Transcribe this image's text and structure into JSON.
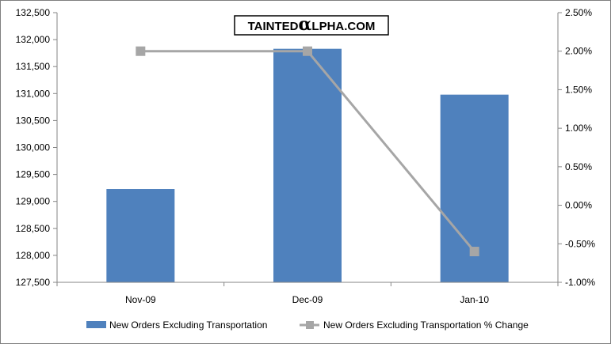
{
  "watermark": {
    "prefix": "TAINTED",
    "alpha": "α",
    "suffix": "LPHA.COM"
  },
  "colors": {
    "bar": "#4f81bd",
    "line": "#a6a6a6",
    "axis": "#868686",
    "frame": "#7f7f7f"
  },
  "chart_data": {
    "type": "bar",
    "categories": [
      "Nov-09",
      "Dec-09",
      "Jan-10"
    ],
    "series": [
      {
        "name": "New Orders Excluding Transportation",
        "type": "bar",
        "axis": "left",
        "values": [
          129230,
          131830,
          130980
        ]
      },
      {
        "name": "New Orders Excluding Transportation  % Change",
        "type": "line",
        "axis": "right",
        "values": [
          0.02,
          0.02,
          -0.006
        ]
      }
    ],
    "y_left": {
      "min": 127500,
      "max": 132500,
      "ticks": [
        127500,
        128000,
        128500,
        129000,
        129500,
        130000,
        130500,
        131000,
        131500,
        132000,
        132500
      ],
      "tick_labels": [
        "127,500",
        "128,000",
        "128,500",
        "129,000",
        "129,500",
        "130,000",
        "130,500",
        "131,000",
        "131,500",
        "132,000",
        "132,500"
      ]
    },
    "y_right": {
      "min": -0.01,
      "max": 0.025,
      "ticks": [
        -0.01,
        -0.005,
        0,
        0.005,
        0.01,
        0.015,
        0.02,
        0.025
      ],
      "tick_labels": [
        "-1.00%",
        "-0.50%",
        "0.00%",
        "0.50%",
        "1.00%",
        "1.50%",
        "2.00%",
        "2.50%"
      ]
    },
    "grid": false,
    "legend": "bottom"
  }
}
